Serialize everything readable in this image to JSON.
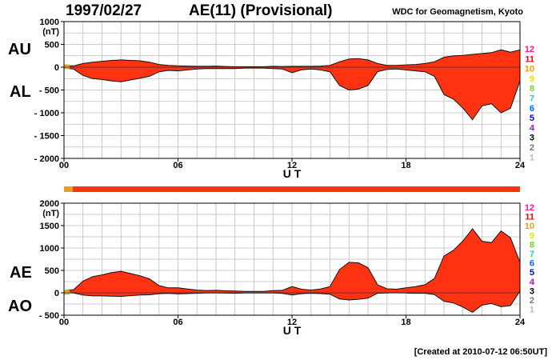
{
  "header": {
    "date": "1997/02/27",
    "title": "AE(11) (Provisional)",
    "source": "WDC for Geomagnetism, Kyoto"
  },
  "footer": {
    "created": "[Created at 2010-07-12 06:50UT]"
  },
  "legend_levels": {
    "labels": [
      "12",
      "11",
      "10",
      "9",
      "8",
      "7",
      "6",
      "5",
      "4",
      "3",
      "2",
      "1"
    ],
    "colors": [
      "#ff1493",
      "#ff0000",
      "#ff9900",
      "#e6e600",
      "#66dd22",
      "#22cccc",
      "#0066ff",
      "#0000cc",
      "#cc00cc",
      "#000000",
      "#777777",
      "#bbbbbb"
    ]
  },
  "chart_data": [
    {
      "type": "area",
      "panel": "top",
      "labels": {
        "upper": "AU",
        "lower": "AL",
        "unit": "(nT)",
        "xlabel": "U T"
      },
      "ylim": [
        -2000,
        1000
      ],
      "yticks": [
        1000,
        500,
        0,
        -500,
        -1000,
        -1500,
        -2000
      ],
      "ytick_labels": [
        "1000",
        "500",
        "0",
        "- 500",
        "- 1000",
        "- 1500",
        "- 2000"
      ],
      "xlim": [
        0,
        24
      ],
      "xticks": [
        0,
        6,
        12,
        18,
        24
      ],
      "xtick_labels": [
        "00",
        "06",
        "12",
        "18",
        "24"
      ],
      "grid": true,
      "fill_color": "#ff3311",
      "start_fill_color": "#e8a020",
      "series": [
        {
          "name": "AU",
          "x": [
            0,
            0.5,
            1,
            1.5,
            2,
            2.5,
            3,
            3.5,
            4,
            4.5,
            5,
            5.5,
            6,
            6.5,
            7,
            7.5,
            8,
            8.5,
            9,
            9.5,
            10,
            10.5,
            11,
            11.5,
            12,
            12.5,
            13,
            13.5,
            14,
            14.5,
            15,
            15.5,
            16,
            16.5,
            17,
            17.5,
            18,
            18.5,
            19,
            19.5,
            20,
            20.5,
            21,
            21.5,
            22,
            22.5,
            23,
            23.5,
            24
          ],
          "values": [
            30,
            30,
            80,
            110,
            130,
            150,
            160,
            150,
            140,
            110,
            60,
            40,
            30,
            25,
            20,
            20,
            25,
            15,
            10,
            10,
            10,
            10,
            20,
            15,
            20,
            20,
            20,
            25,
            40,
            120,
            180,
            190,
            160,
            80,
            40,
            40,
            50,
            60,
            80,
            120,
            220,
            250,
            260,
            280,
            300,
            320,
            380,
            330,
            380
          ]
        },
        {
          "name": "AL",
          "x": [
            0,
            0.5,
            1,
            1.5,
            2,
            2.5,
            3,
            3.5,
            4,
            4.5,
            5,
            5.5,
            6,
            6.5,
            7,
            7.5,
            8,
            8.5,
            9,
            9.5,
            10,
            10.5,
            11,
            11.5,
            12,
            12.5,
            13,
            13.5,
            14,
            14.5,
            15,
            15.5,
            16,
            16.5,
            17,
            17.5,
            18,
            18.5,
            19,
            19.5,
            20,
            20.5,
            21,
            21.5,
            22,
            22.5,
            23,
            23.5,
            24
          ],
          "values": [
            -20,
            -40,
            -180,
            -250,
            -270,
            -300,
            -320,
            -280,
            -240,
            -200,
            -100,
            -70,
            -80,
            -60,
            -40,
            -30,
            -30,
            -30,
            -30,
            -20,
            -20,
            -20,
            -30,
            -40,
            -120,
            -60,
            -40,
            -60,
            -100,
            -400,
            -500,
            -480,
            -400,
            -100,
            -50,
            -40,
            -60,
            -80,
            -100,
            -200,
            -600,
            -700,
            -900,
            -1150,
            -850,
            -800,
            -1000,
            -900,
            -300
          ]
        }
      ]
    },
    {
      "type": "area",
      "panel": "bottom",
      "labels": {
        "upper": "AE",
        "lower": "AO",
        "unit": "(nT)",
        "xlabel": "U T"
      },
      "ylim": [
        -500,
        2000
      ],
      "yticks": [
        2000,
        1500,
        1000,
        500,
        0,
        -500
      ],
      "ytick_labels": [
        "2000",
        "1500",
        "1000",
        "500",
        "0",
        "- 500"
      ],
      "xlim": [
        0,
        24
      ],
      "xticks": [
        0,
        6,
        12,
        18,
        24
      ],
      "xtick_labels": [
        "00",
        "06",
        "12",
        "18",
        "24"
      ],
      "grid": true,
      "fill_color": "#ff3311",
      "start_fill_color": "#e8a020",
      "series": [
        {
          "name": "AE",
          "x": [
            0,
            0.5,
            1,
            1.5,
            2,
            2.5,
            3,
            3.5,
            4,
            4.5,
            5,
            5.5,
            6,
            6.5,
            7,
            7.5,
            8,
            8.5,
            9,
            9.5,
            10,
            10.5,
            11,
            11.5,
            12,
            12.5,
            13,
            13.5,
            14,
            14.5,
            15,
            15.5,
            16,
            16.5,
            17,
            17.5,
            18,
            18.5,
            19,
            19.5,
            20,
            20.5,
            21,
            21.5,
            22,
            22.5,
            23,
            23.5,
            24
          ],
          "values": [
            50,
            70,
            260,
            360,
            400,
            450,
            480,
            430,
            380,
            310,
            160,
            110,
            110,
            85,
            60,
            50,
            55,
            45,
            40,
            30,
            30,
            30,
            50,
            55,
            140,
            80,
            60,
            85,
            140,
            520,
            680,
            670,
            560,
            180,
            90,
            80,
            110,
            140,
            180,
            320,
            820,
            950,
            1160,
            1430,
            1150,
            1120,
            1380,
            1230,
            680
          ]
        },
        {
          "name": "AO",
          "x": [
            0,
            0.5,
            1,
            1.5,
            2,
            2.5,
            3,
            3.5,
            4,
            4.5,
            5,
            5.5,
            6,
            6.5,
            7,
            7.5,
            8,
            8.5,
            9,
            9.5,
            10,
            10.5,
            11,
            11.5,
            12,
            12.5,
            13,
            13.5,
            14,
            14.5,
            15,
            15.5,
            16,
            16.5,
            17,
            17.5,
            18,
            18.5,
            19,
            19.5,
            20,
            20.5,
            21,
            21.5,
            22,
            22.5,
            23,
            23.5,
            24
          ],
          "values": [
            5,
            -5,
            -50,
            -70,
            -70,
            -75,
            -80,
            -65,
            -50,
            -45,
            -20,
            -15,
            -25,
            -18,
            -10,
            -5,
            -3,
            -8,
            -10,
            -5,
            -5,
            -5,
            -5,
            -13,
            -50,
            -20,
            -10,
            -18,
            -30,
            -140,
            -160,
            -145,
            -120,
            -10,
            -5,
            0,
            -5,
            -10,
            -10,
            -40,
            -190,
            -225,
            -320,
            -435,
            -275,
            -240,
            -310,
            -285,
            40
          ]
        }
      ]
    }
  ]
}
